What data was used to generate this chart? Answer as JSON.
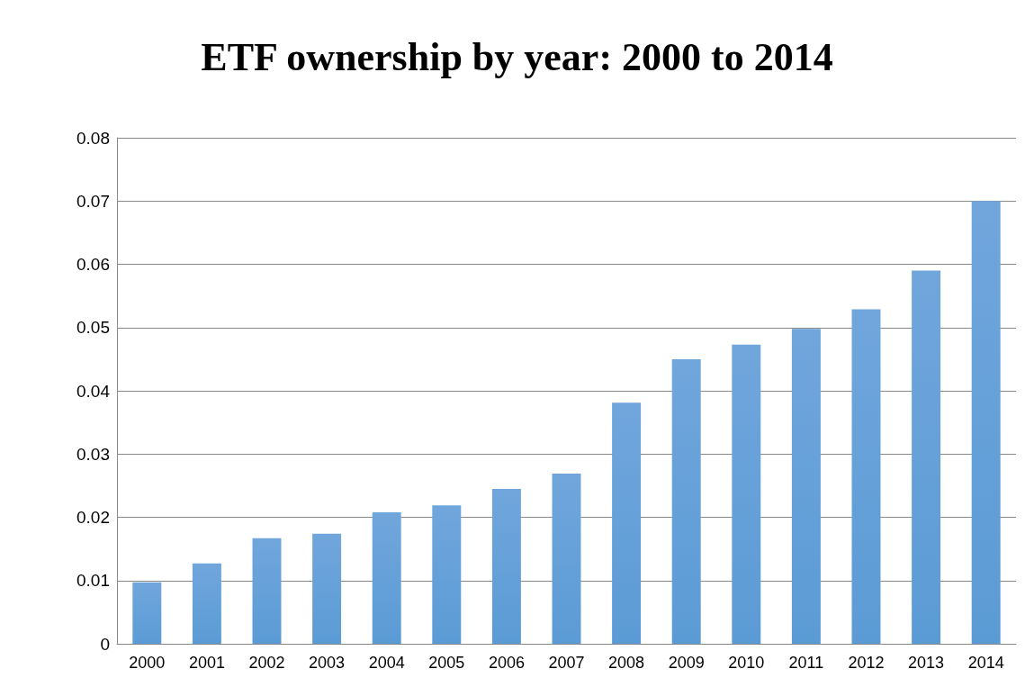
{
  "chart_data": {
    "type": "bar",
    "title": "ETF ownership by year: 2000 to 2014",
    "categories": [
      "2000",
      "2001",
      "2002",
      "2003",
      "2004",
      "2005",
      "2006",
      "2007",
      "2008",
      "2009",
      "2010",
      "2011",
      "2012",
      "2013",
      "2014"
    ],
    "values": [
      0.0097,
      0.0127,
      0.0167,
      0.0174,
      0.0208,
      0.0219,
      0.0245,
      0.0269,
      0.0381,
      0.045,
      0.0473,
      0.0498,
      0.0529,
      0.059,
      0.07
    ],
    "color": "#5b9bd5",
    "ylim": [
      0,
      0.08
    ],
    "yticks": [
      0,
      0.01,
      0.02,
      0.03,
      0.04,
      0.05,
      0.06,
      0.07,
      0.08
    ],
    "grid": "y"
  }
}
